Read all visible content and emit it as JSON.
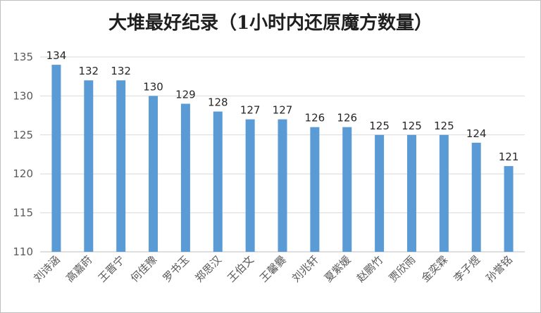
{
  "chart_data": {
    "type": "bar",
    "title": "大堆最好纪录（1小时内还原魔方数量）",
    "xlabel": "",
    "ylabel": "",
    "categories": [
      "刘诗涵",
      "高嘉莳",
      "王晋宁",
      "何佳豫",
      "罗书玉",
      "郑思汉",
      "王伯文",
      "王馨爨",
      "刘兆轩",
      "夏紫媛",
      "赵鹏竹",
      "贾欣雨",
      "金奕霖",
      "李子煜",
      "孙誉铭"
    ],
    "values": [
      134,
      132,
      132,
      130,
      129,
      128,
      127,
      127,
      126,
      126,
      125,
      125,
      125,
      124,
      121
    ],
    "ylim": [
      110,
      135
    ],
    "yticks": [
      110,
      115,
      120,
      125,
      130,
      135
    ],
    "grid": true,
    "legend": "none",
    "bar_color": "#5b9bd5",
    "grid_color": "#d9d9d9"
  }
}
